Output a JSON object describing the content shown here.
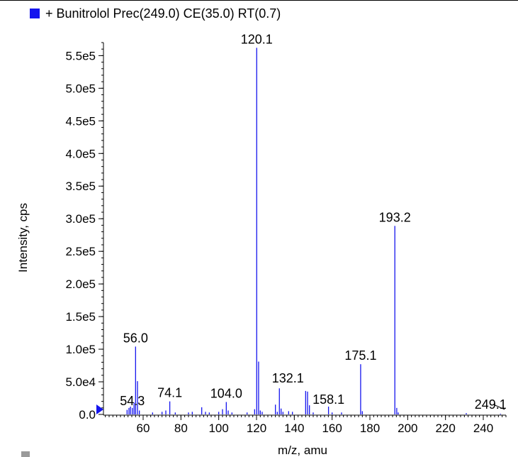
{
  "legend": {
    "label": "+ Bunitrolol Prec(249.0) CE(35.0) RT(0.7)",
    "color": "#1515ee"
  },
  "chart_data": {
    "type": "bar",
    "title": "+ Bunitrolol Prec(249.0) CE(35.0) RT(0.7)",
    "xlabel": "m/z, amu",
    "ylabel": "Intensity, cps",
    "xlim": [
      39,
      252
    ],
    "ylim": [
      0,
      570000
    ],
    "x_ticks": [
      60,
      80,
      100,
      120,
      140,
      160,
      180,
      200,
      220,
      240
    ],
    "y_ticks": [
      {
        "value": 0,
        "label": "0.0"
      },
      {
        "value": 50000,
        "label": "5.0e4"
      },
      {
        "value": 100000,
        "label": "1.0e5"
      },
      {
        "value": 150000,
        "label": "1.5e5"
      },
      {
        "value": 200000,
        "label": "2.0e5"
      },
      {
        "value": 250000,
        "label": "2.5e5"
      },
      {
        "value": 300000,
        "label": "3.0e5"
      },
      {
        "value": 350000,
        "label": "3.5e5"
      },
      {
        "value": 400000,
        "label": "4.0e5"
      },
      {
        "value": 450000,
        "label": "4.5e5"
      },
      {
        "value": 500000,
        "label": "5.0e5"
      },
      {
        "value": 550000,
        "label": "5.5e5"
      }
    ],
    "color": "#1515ee",
    "peaks": [
      {
        "x": 51.5,
        "y": 7000
      },
      {
        "x": 52.5,
        "y": 10000
      },
      {
        "x": 53.3,
        "y": 12000
      },
      {
        "x": 54.3,
        "y": 10000
      },
      {
        "x": 55.2,
        "y": 18000
      },
      {
        "x": 56.0,
        "y": 104000
      },
      {
        "x": 57.0,
        "y": 51000
      },
      {
        "x": 58.0,
        "y": 6000
      },
      {
        "x": 65.0,
        "y": 3000
      },
      {
        "x": 70.0,
        "y": 4000
      },
      {
        "x": 72.0,
        "y": 6000
      },
      {
        "x": 74.1,
        "y": 20000
      },
      {
        "x": 77.0,
        "y": 3000
      },
      {
        "x": 84.0,
        "y": 3000
      },
      {
        "x": 86.0,
        "y": 4000
      },
      {
        "x": 91.0,
        "y": 11000
      },
      {
        "x": 93.0,
        "y": 4000
      },
      {
        "x": 95.0,
        "y": 3000
      },
      {
        "x": 100.0,
        "y": 4000
      },
      {
        "x": 102.0,
        "y": 8000
      },
      {
        "x": 104.0,
        "y": 19000
      },
      {
        "x": 105.0,
        "y": 6000
      },
      {
        "x": 107.0,
        "y": 3000
      },
      {
        "x": 115.0,
        "y": 3000
      },
      {
        "x": 119.0,
        "y": 8000
      },
      {
        "x": 120.1,
        "y": 562000
      },
      {
        "x": 121.1,
        "y": 81000
      },
      {
        "x": 122.0,
        "y": 6000
      },
      {
        "x": 123.0,
        "y": 4000
      },
      {
        "x": 130.0,
        "y": 15000
      },
      {
        "x": 131.0,
        "y": 4000
      },
      {
        "x": 132.1,
        "y": 40000
      },
      {
        "x": 133.0,
        "y": 9000
      },
      {
        "x": 134.0,
        "y": 4000
      },
      {
        "x": 137.0,
        "y": 5000
      },
      {
        "x": 139.0,
        "y": 4000
      },
      {
        "x": 146.0,
        "y": 36000
      },
      {
        "x": 147.0,
        "y": 35000
      },
      {
        "x": 148.0,
        "y": 14000
      },
      {
        "x": 150.0,
        "y": 3000
      },
      {
        "x": 158.1,
        "y": 12000
      },
      {
        "x": 160.0,
        "y": 3000
      },
      {
        "x": 165.0,
        "y": 3000
      },
      {
        "x": 175.1,
        "y": 77000
      },
      {
        "x": 176.0,
        "y": 5000
      },
      {
        "x": 193.2,
        "y": 289000
      },
      {
        "x": 194.2,
        "y": 10000
      },
      {
        "x": 195.0,
        "y": 3000
      },
      {
        "x": 231.0,
        "y": 2000
      },
      {
        "x": 249.1,
        "y": 1000
      }
    ],
    "annotations": [
      {
        "x": 120.1,
        "y": 562000,
        "label": "120.1"
      },
      {
        "x": 193.2,
        "y": 289000,
        "label": "193.2"
      },
      {
        "x": 175.1,
        "y": 77000,
        "label": "175.1"
      },
      {
        "x": 56.0,
        "y": 104000,
        "label": "56.0"
      },
      {
        "x": 132.1,
        "y": 40000,
        "label": "132.1"
      },
      {
        "x": 54.3,
        "y": 10000,
        "label": "54.3"
      },
      {
        "x": 74.1,
        "y": 20000,
        "label": "74.1"
      },
      {
        "x": 104.0,
        "y": 19000,
        "label": "104.0"
      },
      {
        "x": 158.1,
        "y": 12000,
        "label": "158.1"
      },
      {
        "x": 249.1,
        "y": 1000,
        "label": "249.1"
      }
    ],
    "grid": false
  }
}
